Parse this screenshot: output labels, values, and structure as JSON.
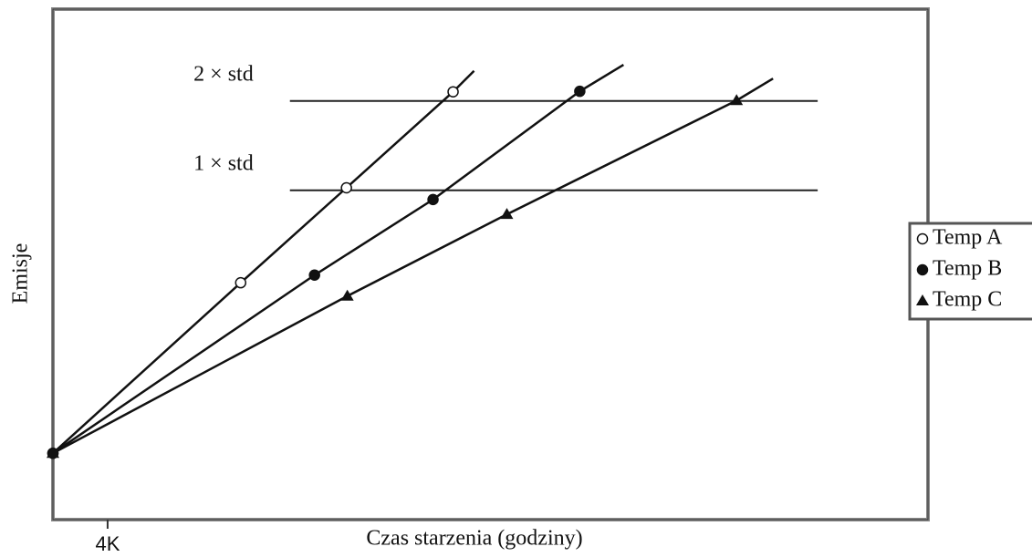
{
  "chart_data": {
    "type": "line",
    "xlabel": "Czas starzenia (godziny)",
    "ylabel": "Emisje",
    "xlim": [
      0,
      64000
    ],
    "ylim": [
      0,
      100
    ],
    "xticks": [
      {
        "value": 4000,
        "label": "4K"
      }
    ],
    "legend": "right",
    "annotations": [
      {
        "text": "2 × std",
        "y": 82,
        "x": [
          17333,
          55933
        ]
      },
      {
        "text": "1 × std",
        "y": 64.5,
        "x": [
          17333,
          55933
        ]
      }
    ],
    "series": [
      {
        "name": "Temp A",
        "color": "#111111",
        "marker": "open-circle",
        "x": [
          0,
          13733,
          21467,
          29267,
          30800
        ],
        "values": [
          13,
          46.4,
          65,
          83.8,
          87.9
        ]
      },
      {
        "name": "Temp B",
        "color": "#111111",
        "marker": "circle",
        "x": [
          0,
          19133,
          27800,
          38533,
          41733
        ],
        "values": [
          13,
          47.9,
          62.7,
          83.9,
          89.1
        ]
      },
      {
        "name": "Temp C",
        "color": "#111111",
        "marker": "triangle",
        "x": [
          0,
          21533,
          33200,
          50000,
          52667
        ],
        "values": [
          13,
          43.8,
          59.8,
          82.1,
          86.4
        ]
      }
    ]
  }
}
